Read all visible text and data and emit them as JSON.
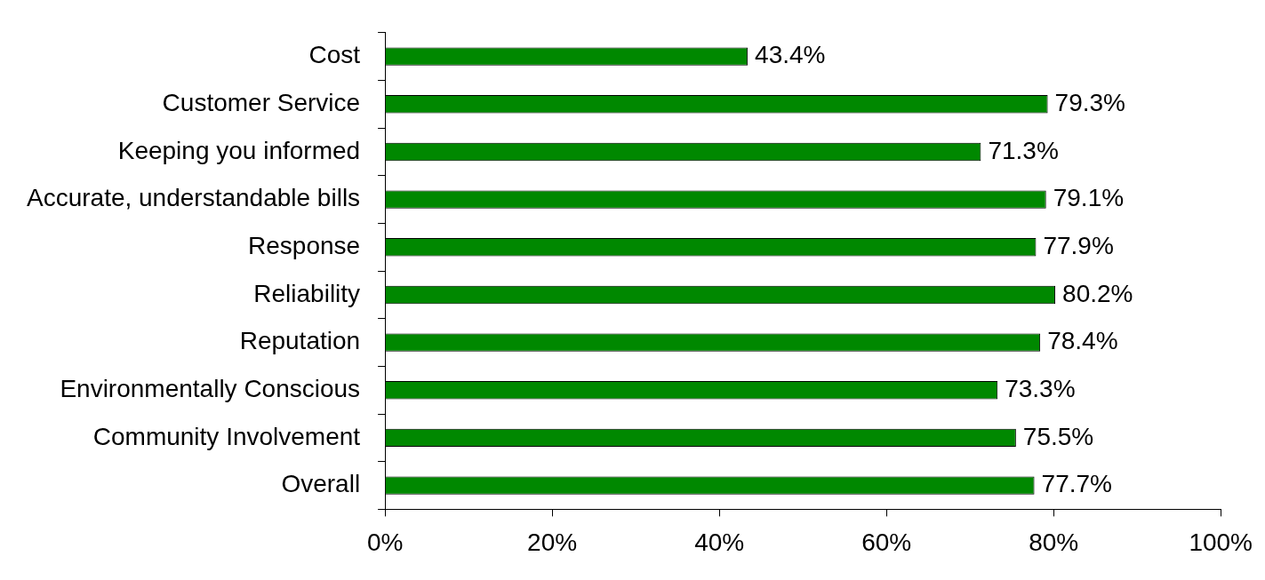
{
  "chart_data": {
    "type": "bar",
    "orientation": "horizontal",
    "categories": [
      "Cost",
      "Customer Service",
      "Keeping you informed",
      "Accurate, understandable bills",
      "Response",
      "Reliability",
      "Reputation",
      "Environmentally Conscious",
      "Community Involvement",
      "Overall"
    ],
    "values": [
      43.4,
      79.3,
      71.3,
      79.1,
      77.9,
      80.2,
      78.4,
      73.3,
      75.5,
      77.7
    ],
    "value_labels": [
      "43.4%",
      "79.3%",
      "71.3%",
      "79.1%",
      "77.9%",
      "80.2%",
      "78.4%",
      "73.3%",
      "75.5%",
      "77.7%"
    ],
    "color": "#008800",
    "xlim": [
      0,
      100
    ],
    "xticks": [
      {
        "value": 0,
        "label": "0%"
      },
      {
        "value": 20,
        "label": "20%"
      },
      {
        "value": 40,
        "label": "40%"
      },
      {
        "value": 60,
        "label": "60%"
      },
      {
        "value": 80,
        "label": "80%"
      },
      {
        "value": 100,
        "label": "100%"
      }
    ]
  }
}
